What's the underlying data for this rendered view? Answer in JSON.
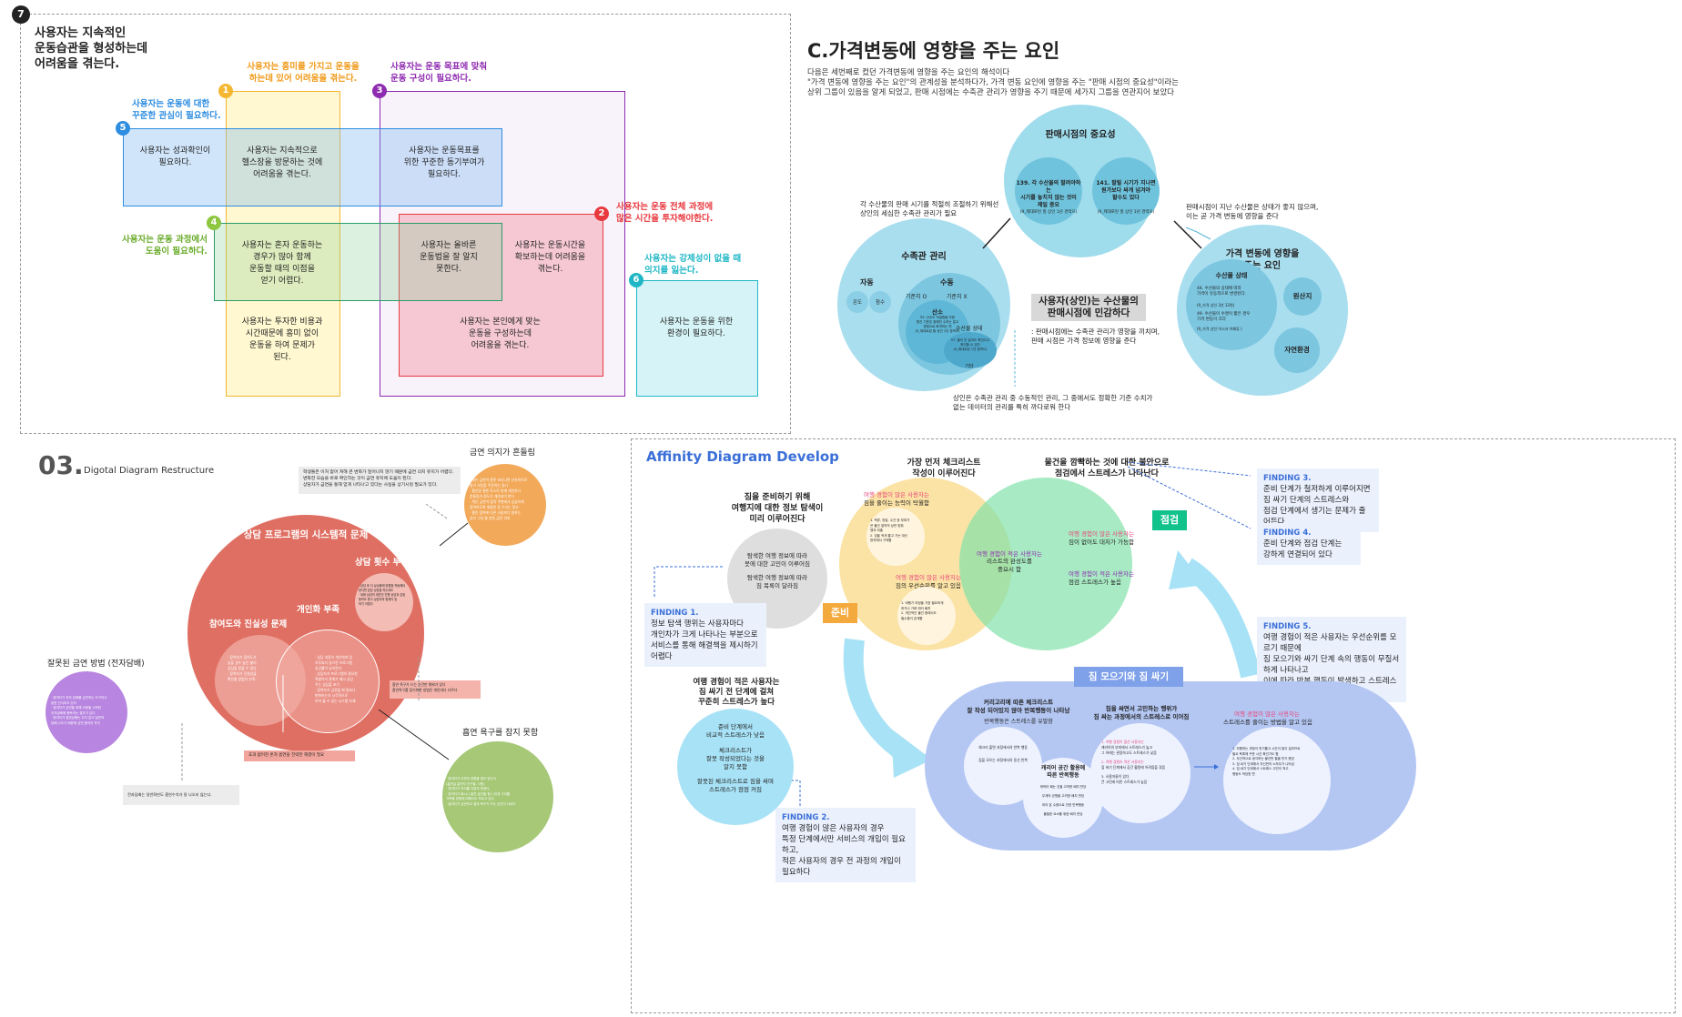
{
  "panel1": {
    "badge": "7",
    "title": "사용자는 지속적인\n운동습관을 형성하는데\n어려움을 겪는다.",
    "labels": {
      "l1": "사용자는 흥미를 가지고 운동을\n하는데 있어 어려움을 겪는다.",
      "l2": "사용자는 운동 전체 과정에\n많은 시간을 투자해야한다.",
      "l3": "사용자는 운동 목표에 맞춰\n운동 구성이 필요하다.",
      "l4": "사용자는 운동 과정에서\n도움이 필요하다.",
      "l5": "사용자는 운동에 대한\n꾸준한 관심이 필요하다.",
      "l6": "사용자는 강제성이 없을 때\n의지를 잃는다."
    },
    "numbers": {
      "n1": "1",
      "n2": "2",
      "n3": "3",
      "n4": "4",
      "n5": "5",
      "n6": "6"
    },
    "cells": {
      "c1": "사용자는 성과확인이\n필요하다.",
      "c2": "사용자는 지속적으로\n헬스장을 방문하는 것에\n어려움을 겪는다.",
      "c3": "사용자는 운동목표를\n위한 꾸준한 동기부여가\n필요하다.",
      "c4": "사용자는 혼자 운동하는\n경우가 많아 함께\n운동할 때의 이점을\n얻기 어렵다.",
      "c5": "사용자는 올바른\n운동법을 잘 알지\n못한다.",
      "c6": "사용자는 운동시간을\n확보하는데 어려움을\n겪는다.",
      "c7": "사용자는 투자한 비용과\n시간때문에 흥미 없이\n운동을 하여 문제가\n된다.",
      "c8": "사용자는 본인에게 맞는\n운동을 구성하는데\n어려움을 겪는다.",
      "c9": "사용자는 운동을 위한\n환경이 필요하다."
    },
    "colors": {
      "c1": "#f5b731",
      "c2": "#e8393f",
      "c3": "#8e2bb0",
      "c4": "#8dc63f",
      "c5": "#2d8de0",
      "c6": "#1fb7c6"
    }
  },
  "panel2": {
    "title": "C.가격변동에 영향을 주는 요인",
    "desc": "다음은 세번째로 컸던 가격변동에 영향을 주는 요인의 해석이다\n\"가격 변동에 영향을 주는 요인\"의 관계성을 분석하다가, 가격 변동 요인에 영향을 주는 \"판매 시점의 중요성\"이라는\n상위 그룹이 있음을 알게 되었고, 판매 시점에는 수축관 관리가 영향을 주기 때문에 세가지 그룹을 연관지어 보았다",
    "sale_title": "판매시점의 중요성",
    "sale_a": "139. 각 수산물의 팔려야하는\n시기를 놓치지 않는 것이\n제일 중요",
    "sale_a_sub": "(9_제대로된 힐 상인 1년 경력으)",
    "sale_b": "141. 팔릴 시기가 지나면\n원가보다 싸게 넘겨야\n할수도 있다",
    "sale_b_sub": "(9_제대로된 힐 상인 1년 경력으)",
    "left_note": "각 수산물의 판매 시기를 적절히 조절하기 위해선\n상인의 세심한 수족관 관리가 필요",
    "right_note": "판매시점이 지난 수산물은 상태가 좋지 않으며,\n이는 곧 가격 변동에 영향을 준다",
    "aq_title": "수족관 관리",
    "aq_a": "자동",
    "aq_a1": "온도",
    "aq_a2": "참수",
    "aq_b": "수동",
    "aq_b1": "기준치 O",
    "aq_b2": "기준치 X",
    "aq_c": "산소",
    "aq_c_note": "55. 산소도 적절함을 아한\n항긴 기준은 정해진 수치는 없고\n경험으로 파악하는 편\n(9_제대로된 힐 상인 1년 경력으)",
    "aq_d": "수산물 상태",
    "aq_d_note": "57. 물이 안 갈아도 죽인다고\n확인할 수 있다\n(9_제대로된 1년 경력으)",
    "aq_e": "기타",
    "center_box": "사용자(상인)는 수산물의\n판매시점에 민감하다",
    "center_note": ": 판매시점에는 수족관 관리가 영향을 끼치며,\n판매 시점은 가격 정보에 영향을 준다",
    "price_title": "가격 변동에 영향을\n주는 요인",
    "price_a": "수산물 상태",
    "price_a1": "44. 수산물의 상태에 따라\n가격이 유동적으로 변경된다.",
    "price_a1_sub": "(9_가격 상인 3년 12편)",
    "price_a2": "49. 수산물이 수명이 짧은 경우\n가격 변동이 크다",
    "price_a2_sub": "(9_가격 상인 어시서 어패류 )",
    "price_b": "원산지",
    "price_c": "자연환경",
    "bottom_note": "상인은 수족관 관리 중 수동적인 관리, 그 중에서도 정확한 기준 수치가\n없는 데이터의 관리를 특히 까다로워 한다"
  },
  "panel3": {
    "num": "03.",
    "subtitle": "Digotal Diagram Restructure",
    "topright_title": "금연 의지가 흔들림",
    "topright_text": "· 개인 금연이 잘못 되더니면 신속적으로\n  용기 사탕을 주문하는 있다\n· 흡연량 결론 토스트 한계 개인하다\n  흔들림의 정도가 계속되어 한다\n· 개인 금연이 점차 주변에서 심심하게\n  참여하도록 개중한 동 우리는 찾고\n· 흡연 참여에 다른 사람보다 원하는\n  성리 그의 쓸 한동 금연 의지",
    "top_box": "학생들은 이처 없어 쳐해 큰 변화가 일어나지 않기 때문에 금연 의지 유지가 어렵다.\n변화한 모습을 바로 확인하는 것이 금연 유지에 도움이 된다.\n상담자가 금연을 통해 얻게 나타나고 있다는 사실을 상기시킬 필요가 있다.",
    "big_title": "상담 프로그램의 시스템적 문제",
    "count_title": "상담 횟수 부족",
    "count_text": "· 상담 후 다 상상중에 방향을 작동해야\n  한다면 담당 상담을 하는대도\n· 대화 상담의 대전인 진행 상담과 감정\n  동력도 좋고 상담자와 함께의 및\n  하기 어렵다",
    "particip_title": "참여도와 진실성 문제",
    "personal_title": "개인화 부족",
    "particip_text": "· 참여자가 참여도가\n  낮을 경우 높은 할러\n  상담을 받을 수 있다\n· 참여자가 진실성을\n  확인할 방법이 부족.",
    "personal_text": "· 상담 내용이 개인에게 맞\n  지루되지 않으면 프로그램\n  성공률이 낮아진다\n· 상담자가 프로그램의 중요한\n  역할이라 관계가 예고 상담\n  주는 상담을 포기\n· 참여자가 금연을 왜 필요나\n  변화하는지 시각적으로\n  보여 줄 수 있는 시스템 부재",
    "pink_box": "흡연 욕구가 드는 순간만 채워가 있다\n흡연욕구를 참기위한 방법은 개인마다 다르다",
    "bottom_box": "효과 없어진 혼자 흡연을 전략한 해결이 필요",
    "left_title": "잘못된 금연 방법 (전자담배)",
    "left_text": "· 참여자가 전자 담배를 금연하는 도구라고\n  잘못 인식하고 있다\n· 참여자가 금연을 위해 사용을 시작한\n  전자담배에 중독되는 경우가 있다\n· 참여자가 일반담배는 주지 않고 일반적\n  담배 나오기 때문에 금연 중이라 착각",
    "left_box": "전자담배는 일반화만도 흡연수치가 잘 나오지 않는다.",
    "br_title": "흡연 욕구를 참지 못함",
    "br_text": "· 참여자가 주변의 영향을 많이 받는다\n  (흡연실 흡연자 친구들, 사원)\n· 참여자가 의지를 다잡지 못한다\n· 참여자가 혹시시 흡연 습관을 잠시 한계 그러를\n  극복할 방법에 대해서도 모르고 있다\n· 참여자가 금연하고 결국 욕구가 드는 순간이 다르다"
  },
  "panel4": {
    "title": "Affinity Diagram Develop",
    "top_center": "가장 먼저 체크리스트\n작성이 이루어진다",
    "top_right": "물건을 깜빡하는 것에 대한 불안으로\n점검에서 스트레스가 나타난다",
    "info_title": "짐을 준비하기 위해\n여행지에 대한 정보 탐색이\n미리 이루어진다",
    "info_a": "탐색한 여행 정보에 따라\n못에 대한 고민이 이루어짐",
    "info_b": "탐색한 여행 정보에 따라\n짐 목록이 달라짐",
    "prep_a_hl": "여행 경험이 많은 사용자는",
    "prep_a": "짐을 줄이는 능력이 탁월함",
    "prep_a_items": "1. 옥류, 양말, 수건 등 부피가\n   큰 물건 절약의 상만 맞춰\n   챙겨 외출\n2. 짐을 적게 줄고 가는 대신\n   현지에서 구매함",
    "prep_b_hl": "여행 경험이 많은 사용자는",
    "prep_b": "짐의 우선순위를 알고 있음",
    "prep_b_items": "1. 비행기 여정을 가장 필요하게\n   하거나 가벼 여러 배치\n2. 개인적인 물건 중에서도\n   필수품이 존재함",
    "mid_hl": "여행 경험이 적은 사용자는",
    "mid": "리스트의 완성도를\n중요시 함",
    "chk_a_hl": "여행 경험이 많은 사용자는",
    "chk_a": "짐이 없어도 대처가 가능함",
    "chk_b_hl": "여행 경험이 적은 사용자는",
    "chk_b": "점검 스트레스가 높음",
    "junbi": "준비",
    "jeomgeom": "점검",
    "finding1": "FINDING 1.",
    "finding1_text": "정보 탐색 행위는 사용자마다\n개인차가 크게 나타나는 부분으로\n서비스를 통해 해결책을 제시하기 어렵다",
    "finding3": "FINDING 3.",
    "finding3_text": "준비 단계가 철저하게 이루어지면\n짐 싸기 단계의 스트레스와\n점검 단계에서 생기는 문제가 줄어든다",
    "finding4": "FINDING 4.",
    "finding4_text": "준비 단계와 점검 단계는\n강하게 연결되어 있다",
    "finding5": "FINDING 5.",
    "finding5_text": "여행 경험이 적은 사용자는 우선순위를 모르기 때문에\n짐 모으기와 싸기 단계 속의 행동이 무질서하게 나타나고\n이에 따라 반복 행동이 발생하고 스트레스가 축적된다",
    "pack_label": "짐 모으기와 짐 싸기",
    "stress_title": "여행 경험이 적은 사용자는\n짐 싸기 전 단계에 걸쳐\n꾸준히 스트레스가 높다",
    "stress_a": "준비 단계에서\n비교적 스트레스가 낮음",
    "stress_b": "체크리스트가\n잘못 작성되었다는 것을\n알지 못함",
    "stress_c": "잘못된 체크리스트로 짐을 싸며\n스트레스가 점점 커짐",
    "finding2": "FINDING 2.",
    "finding2_text": "여행 경험이 많은 사용자의 경우\n특정 단계에서만 서비스의 개입이 필요하고,\n적은 사용자의 경우 전 과정의 개입이 필요하다",
    "pack_a_title": "커리고리에 따른 체크리스트\n잘 작성 되어있지 않아 반복행동이 나타남",
    "pack_a_sub": "반복행동은 스트레스를 유발함",
    "pack_a_1": "체크리 출면 과정에서의 반복 행동",
    "pack_a_2": "짐을 모으는 과정에서의 동선 반복",
    "pack_b_title": "캐리어 공간 활용에\n따른 반복행동",
    "pack_b_1": "캐릭터 패는 것을 고려한 배치 반당",
    "pack_b_2": "무게의 균형을 고려한 배치 반당",
    "pack_b_3": "외의 앞 수량으로 인한 반복행동",
    "pack_b_4": "불필한 요소를 위한 배치 반당",
    "pack_c_title": "짐을 싸면서 고민하는 행위가\n짐 싸는 과정에서의 스트레스로 이어짐",
    "pack_c_hl1": "1. 여행 경험이 많은 사용자는",
    "pack_c_1": "캐리어의 부피에서 스트레스가 높고\n그 하에는 관광하고도 스트레스가 낮음",
    "pack_c_hl2": "2. 여행 경험이 적은 사용자는",
    "pack_c_2": "짐 싸기 단계에서 공간 활용에 어려움을 겪음",
    "pack_c_3": "3. 사용자들이 있다\n   큰 고민에 따른 스트레스가 높음",
    "pack_d_hl": "여행 경험이 많은 사용자는",
    "pack_d": "스트레스를 줄이는 방법을 알고 있음",
    "pack_d_items": "1. 자행하는 과정이 반기를고 시간이 많이 걸리므로\n   필요 목록에 꾸준 시킨 확인기도 함\n2. 우선적으로 생각하는 물건만 필을 반기 봤당\n3. 짐 싸기 단계에서 자신만의 노하우가 나타남\n4. 짐 싸기 단계에서 스트레스 고민이 적고\n   행동도 적당한 편",
    "colors": {
      "blue": "#3b6fd8",
      "orange": "#f4a93c",
      "green": "#3ec98a",
      "cyan": "#8fdcf3",
      "pink": "#e8457a"
    }
  }
}
